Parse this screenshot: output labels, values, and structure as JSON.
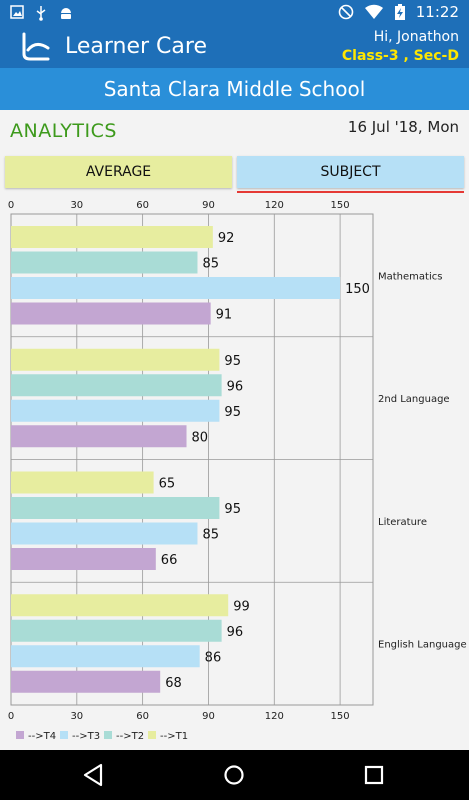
{
  "status_bar": {
    "time": "11:22",
    "left_icons": [
      "image-icon",
      "usb-icon",
      "android-icon"
    ],
    "right_icons": [
      "do-not-disturb-icon",
      "wifi-icon",
      "battery-charging-icon"
    ]
  },
  "app_bar": {
    "title": "Learner Care",
    "greeting": "Hi, Jonathon",
    "class_info": "Class-3 , Sec-D"
  },
  "school_name": "Santa Clara Middle School",
  "section_title": "ANALYTICS",
  "date": "16 Jul '18, Mon",
  "tabs": [
    {
      "label": "AVERAGE",
      "selected": false
    },
    {
      "label": "SUBJECT",
      "selected": true
    }
  ],
  "chart_data": {
    "type": "bar",
    "orientation": "horizontal",
    "categories": [
      "Mathematics",
      "2nd Language",
      "Literature",
      "English Language"
    ],
    "series": [
      {
        "name": "-->T1",
        "color": "#e7ed9f",
        "values": [
          92,
          95,
          65,
          99
        ]
      },
      {
        "name": "-->T2",
        "color": "#a9dcd6",
        "values": [
          85,
          96,
          95,
          96
        ]
      },
      {
        "name": "-->T3",
        "color": "#b6e0f6",
        "values": [
          150,
          95,
          85,
          86
        ]
      },
      {
        "name": "-->T4",
        "color": "#c3a6d2",
        "values": [
          91,
          80,
          66,
          68
        ]
      }
    ],
    "x_ticks": [
      0,
      30,
      60,
      90,
      120,
      150
    ],
    "xlim": [
      0,
      165
    ],
    "grid": true,
    "legend_position": "bottom-left",
    "legend_order": [
      "-->T4",
      "-->T3",
      "-->T2",
      "-->T1"
    ]
  },
  "nav": {
    "back": "back-icon",
    "home": "home-icon",
    "recents": "recents-icon"
  }
}
